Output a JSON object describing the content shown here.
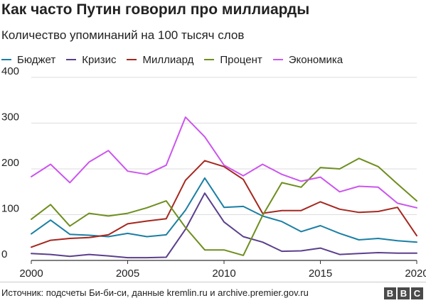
{
  "chart_data": {
    "type": "line",
    "title": "Как часто Путин говорил про миллиарды",
    "subtitle": "Количество упоминаний на 100 тысяч слов",
    "x": [
      2000,
      2001,
      2002,
      2003,
      2004,
      2005,
      2006,
      2007,
      2008,
      2009,
      2010,
      2011,
      2012,
      2013,
      2014,
      2015,
      2016,
      2017,
      2018,
      2019,
      2020
    ],
    "x_ticks": [
      "2000",
      "2005",
      "2010",
      "2015",
      "2020"
    ],
    "y_ticks": [
      "0",
      "100",
      "200",
      "300",
      "400"
    ],
    "xlim": [
      2000,
      2020
    ],
    "ylim": [
      0,
      400
    ],
    "grid": true,
    "legend_position": "top",
    "series": [
      {
        "name": "Бюджет",
        "color": "#1a7fa4",
        "values": [
          58,
          88,
          57,
          55,
          52,
          59,
          52,
          56,
          110,
          180,
          116,
          118,
          97,
          85,
          63,
          76,
          59,
          45,
          48,
          43,
          40
        ]
      },
      {
        "name": "Кризис",
        "color": "#5b3f8c",
        "values": [
          15,
          13,
          9,
          13,
          10,
          6,
          6,
          7,
          68,
          147,
          84,
          52,
          40,
          20,
          21,
          27,
          13,
          15,
          17,
          16,
          16
        ]
      },
      {
        "name": "Миллиард",
        "color": "#a5271f",
        "values": [
          29,
          44,
          48,
          50,
          56,
          80,
          86,
          91,
          175,
          218,
          205,
          177,
          103,
          109,
          109,
          128,
          112,
          105,
          107,
          116,
          54
        ]
      },
      {
        "name": "Процент",
        "color": "#6e8e1f",
        "values": [
          90,
          122,
          75,
          103,
          97,
          103,
          115,
          130,
          72,
          23,
          23,
          11,
          98,
          170,
          160,
          203,
          200,
          223,
          205,
          167,
          130
        ]
      },
      {
        "name": "Экономика",
        "color": "#cc55ee",
        "values": [
          183,
          210,
          170,
          215,
          240,
          195,
          188,
          208,
          313,
          270,
          208,
          185,
          210,
          188,
          173,
          182,
          150,
          162,
          160,
          125,
          115
        ]
      }
    ]
  },
  "footer": {
    "source": "Источник: подсчеты Би-би-си, данные kremlin.ru и archive.premier.gov.ru",
    "logo_text": "BBC"
  }
}
